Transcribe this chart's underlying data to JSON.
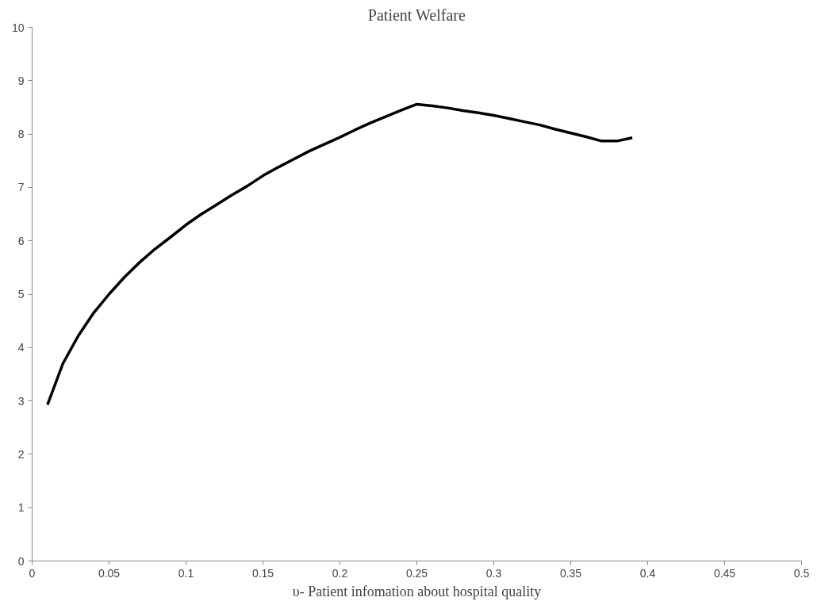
{
  "chart_data": {
    "type": "line",
    "title": "Patient Welfare",
    "xlabel": "υ- Patient infomation about hospital quality",
    "x": [
      0.01,
      0.02,
      0.03,
      0.04,
      0.05,
      0.06,
      0.07,
      0.08,
      0.09,
      0.1,
      0.11,
      0.12,
      0.13,
      0.14,
      0.15,
      0.16,
      0.17,
      0.18,
      0.19,
      0.2,
      0.21,
      0.22,
      0.23,
      0.24,
      0.25,
      0.26,
      0.27,
      0.28,
      0.29,
      0.3,
      0.31,
      0.32,
      0.33,
      0.34,
      0.35,
      0.36,
      0.37,
      0.38,
      0.39
    ],
    "series": [
      {
        "color": "#000000",
        "values": [
          2.93,
          3.7,
          4.22,
          4.65,
          5.0,
          5.32,
          5.6,
          5.85,
          6.07,
          6.3,
          6.5,
          6.68,
          6.86,
          7.03,
          7.22,
          7.38,
          7.53,
          7.68,
          7.81,
          7.94,
          8.08,
          8.21,
          8.33,
          8.45,
          8.56,
          8.53,
          8.49,
          8.44,
          8.4,
          8.35,
          8.29,
          8.23,
          8.17,
          8.09,
          8.02,
          7.95,
          7.87,
          7.87,
          7.93
        ]
      }
    ],
    "xlim": [
      0,
      0.5
    ],
    "xticks": [
      0,
      0.05,
      0.1,
      0.15,
      0.2,
      0.25,
      0.3,
      0.35,
      0.4,
      0.45,
      0.5
    ],
    "ylim": [
      0,
      10
    ],
    "yticks": [
      0,
      1,
      2,
      3,
      4,
      5,
      6,
      7,
      8,
      9,
      10
    ],
    "grid": false,
    "marker": "none",
    "line_style": "solid"
  }
}
